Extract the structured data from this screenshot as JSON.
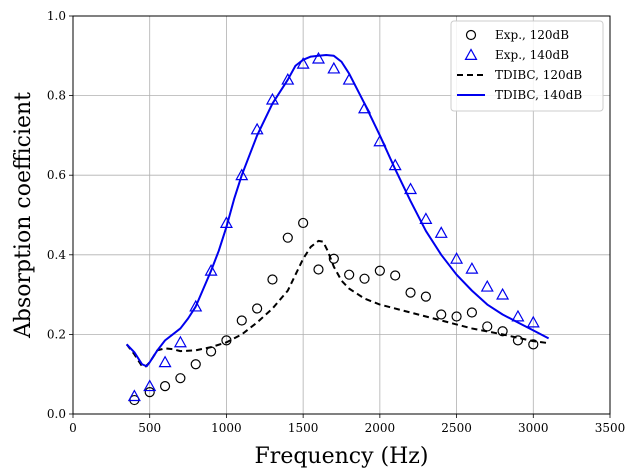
{
  "chart_data": {
    "type": "line",
    "xlabel": "Frequency (Hz)",
    "ylabel": "Absorption coefficient",
    "xlim": [
      0,
      3500
    ],
    "ylim": [
      0,
      1.0
    ],
    "xticks": [
      0,
      500,
      1000,
      1500,
      2000,
      2500,
      3000,
      3500
    ],
    "xtick_labels": [
      "0",
      "500",
      "1000",
      "1500",
      "2000",
      "2500",
      "3000",
      "3500"
    ],
    "yticks": [
      0.0,
      0.2,
      0.4,
      0.6,
      0.8,
      1.0
    ],
    "ytick_labels": [
      "0.0",
      "0.2",
      "0.4",
      "0.6",
      "0.8",
      "1.0"
    ],
    "grid": true,
    "legend_position": "top-right",
    "series": [
      {
        "name": "Exp., 120dB",
        "kind": "scatter",
        "marker": "circle",
        "color": "#000000",
        "x": [
          400,
          500,
          600,
          700,
          800,
          900,
          1000,
          1100,
          1200,
          1300,
          1400,
          1500,
          1600,
          1700,
          1800,
          1900,
          2000,
          2100,
          2200,
          2300,
          2400,
          2500,
          2600,
          2700,
          2800,
          2900,
          3000
        ],
        "y": [
          0.035,
          0.055,
          0.07,
          0.09,
          0.125,
          0.157,
          0.185,
          0.235,
          0.265,
          0.338,
          0.443,
          0.48,
          0.363,
          0.39,
          0.35,
          0.34,
          0.36,
          0.348,
          0.305,
          0.295,
          0.25,
          0.245,
          0.255,
          0.22,
          0.208,
          0.185,
          0.175
        ]
      },
      {
        "name": "Exp., 140dB",
        "kind": "scatter",
        "marker": "triangle",
        "color": "#0000ee",
        "x": [
          400,
          500,
          600,
          700,
          800,
          900,
          1000,
          1100,
          1200,
          1300,
          1400,
          1500,
          1600,
          1700,
          1800,
          1900,
          2000,
          2100,
          2200,
          2300,
          2400,
          2500,
          2600,
          2700,
          2800,
          2900,
          3000
        ],
        "y": [
          0.045,
          0.07,
          0.13,
          0.18,
          0.27,
          0.36,
          0.48,
          0.6,
          0.715,
          0.79,
          0.84,
          0.88,
          0.893,
          0.868,
          0.84,
          0.768,
          0.685,
          0.625,
          0.565,
          0.49,
          0.455,
          0.39,
          0.365,
          0.32,
          0.3,
          0.245,
          0.23
        ]
      },
      {
        "name": "TDIBC, 120dB",
        "kind": "line",
        "dash": "dashed",
        "color": "#000000",
        "x": [
          350,
          400,
          450,
          470,
          500,
          550,
          600,
          650,
          700,
          800,
          900,
          1000,
          1100,
          1200,
          1300,
          1400,
          1450,
          1500,
          1550,
          1600,
          1630,
          1660,
          1700,
          1750,
          1800,
          1900,
          2000,
          2200,
          2400,
          2600,
          2800,
          3000,
          3100
        ],
        "y": [
          0.175,
          0.15,
          0.12,
          0.118,
          0.13,
          0.16,
          0.165,
          0.163,
          0.158,
          0.16,
          0.168,
          0.18,
          0.2,
          0.23,
          0.265,
          0.31,
          0.35,
          0.39,
          0.42,
          0.435,
          0.433,
          0.41,
          0.37,
          0.335,
          0.315,
          0.29,
          0.275,
          0.255,
          0.235,
          0.215,
          0.2,
          0.183,
          0.178
        ]
      },
      {
        "name": "TDIBC, 140dB",
        "kind": "line",
        "dash": "solid",
        "color": "#0000ee",
        "x": [
          350,
          400,
          450,
          480,
          500,
          550,
          600,
          650,
          700,
          750,
          800,
          850,
          900,
          950,
          1000,
          1050,
          1100,
          1200,
          1300,
          1400,
          1450,
          1500,
          1550,
          1600,
          1650,
          1700,
          1750,
          1800,
          1900,
          2000,
          2100,
          2200,
          2300,
          2400,
          2500,
          2600,
          2700,
          2800,
          2900,
          3000,
          3100
        ],
        "y": [
          0.175,
          0.155,
          0.125,
          0.12,
          0.13,
          0.16,
          0.185,
          0.2,
          0.215,
          0.24,
          0.27,
          0.315,
          0.36,
          0.41,
          0.47,
          0.54,
          0.6,
          0.7,
          0.78,
          0.84,
          0.875,
          0.89,
          0.898,
          0.9,
          0.902,
          0.9,
          0.885,
          0.855,
          0.78,
          0.7,
          0.615,
          0.535,
          0.46,
          0.4,
          0.35,
          0.31,
          0.275,
          0.25,
          0.23,
          0.21,
          0.19
        ]
      }
    ]
  }
}
